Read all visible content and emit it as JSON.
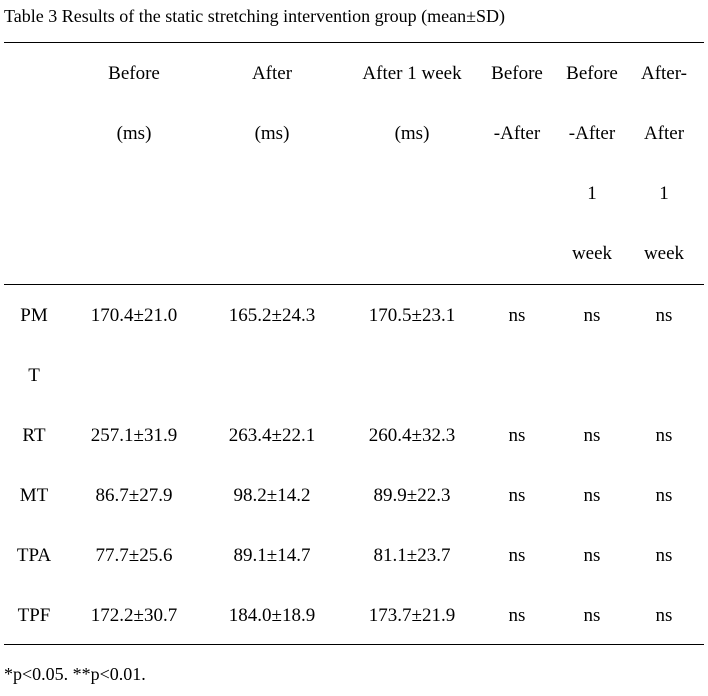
{
  "caption": "Table 3 Results of the static stretching intervention group (mean±SD)",
  "header": [
    [
      "",
      "",
      "",
      ""
    ],
    [
      "Before",
      "(ms)",
      "",
      ""
    ],
    [
      "After",
      "(ms)",
      "",
      ""
    ],
    [
      "After 1 week",
      "(ms)",
      "",
      ""
    ],
    [
      "Before",
      "-After",
      "",
      ""
    ],
    [
      "Before",
      "-After",
      "1",
      "week"
    ],
    [
      "After-",
      "After",
      "1",
      "week"
    ]
  ],
  "rows": [
    {
      "label": [
        "PM",
        "T"
      ],
      "values": [
        "170.4±21.0",
        "165.2±24.3",
        "170.5±23.1",
        "ns",
        "ns",
        "ns"
      ]
    },
    {
      "label": [
        "RT"
      ],
      "values": [
        "257.1±31.9",
        "263.4±22.1",
        "260.4±32.3",
        "ns",
        "ns",
        "ns"
      ]
    },
    {
      "label": [
        "MT"
      ],
      "values": [
        "86.7±27.9",
        "98.2±14.2",
        "89.9±22.3",
        "ns",
        "ns",
        "ns"
      ]
    },
    {
      "label": [
        "TPA"
      ],
      "values": [
        "77.7±25.6",
        "89.1±14.7",
        "81.1±23.7",
        "ns",
        "ns",
        "ns"
      ]
    },
    {
      "label": [
        "TPF"
      ],
      "values": [
        "172.2±30.7",
        "184.0±18.9",
        "173.7±21.9",
        "ns",
        "ns",
        "ns"
      ]
    }
  ],
  "footnote": "*p<0.05.   **p<0.01."
}
